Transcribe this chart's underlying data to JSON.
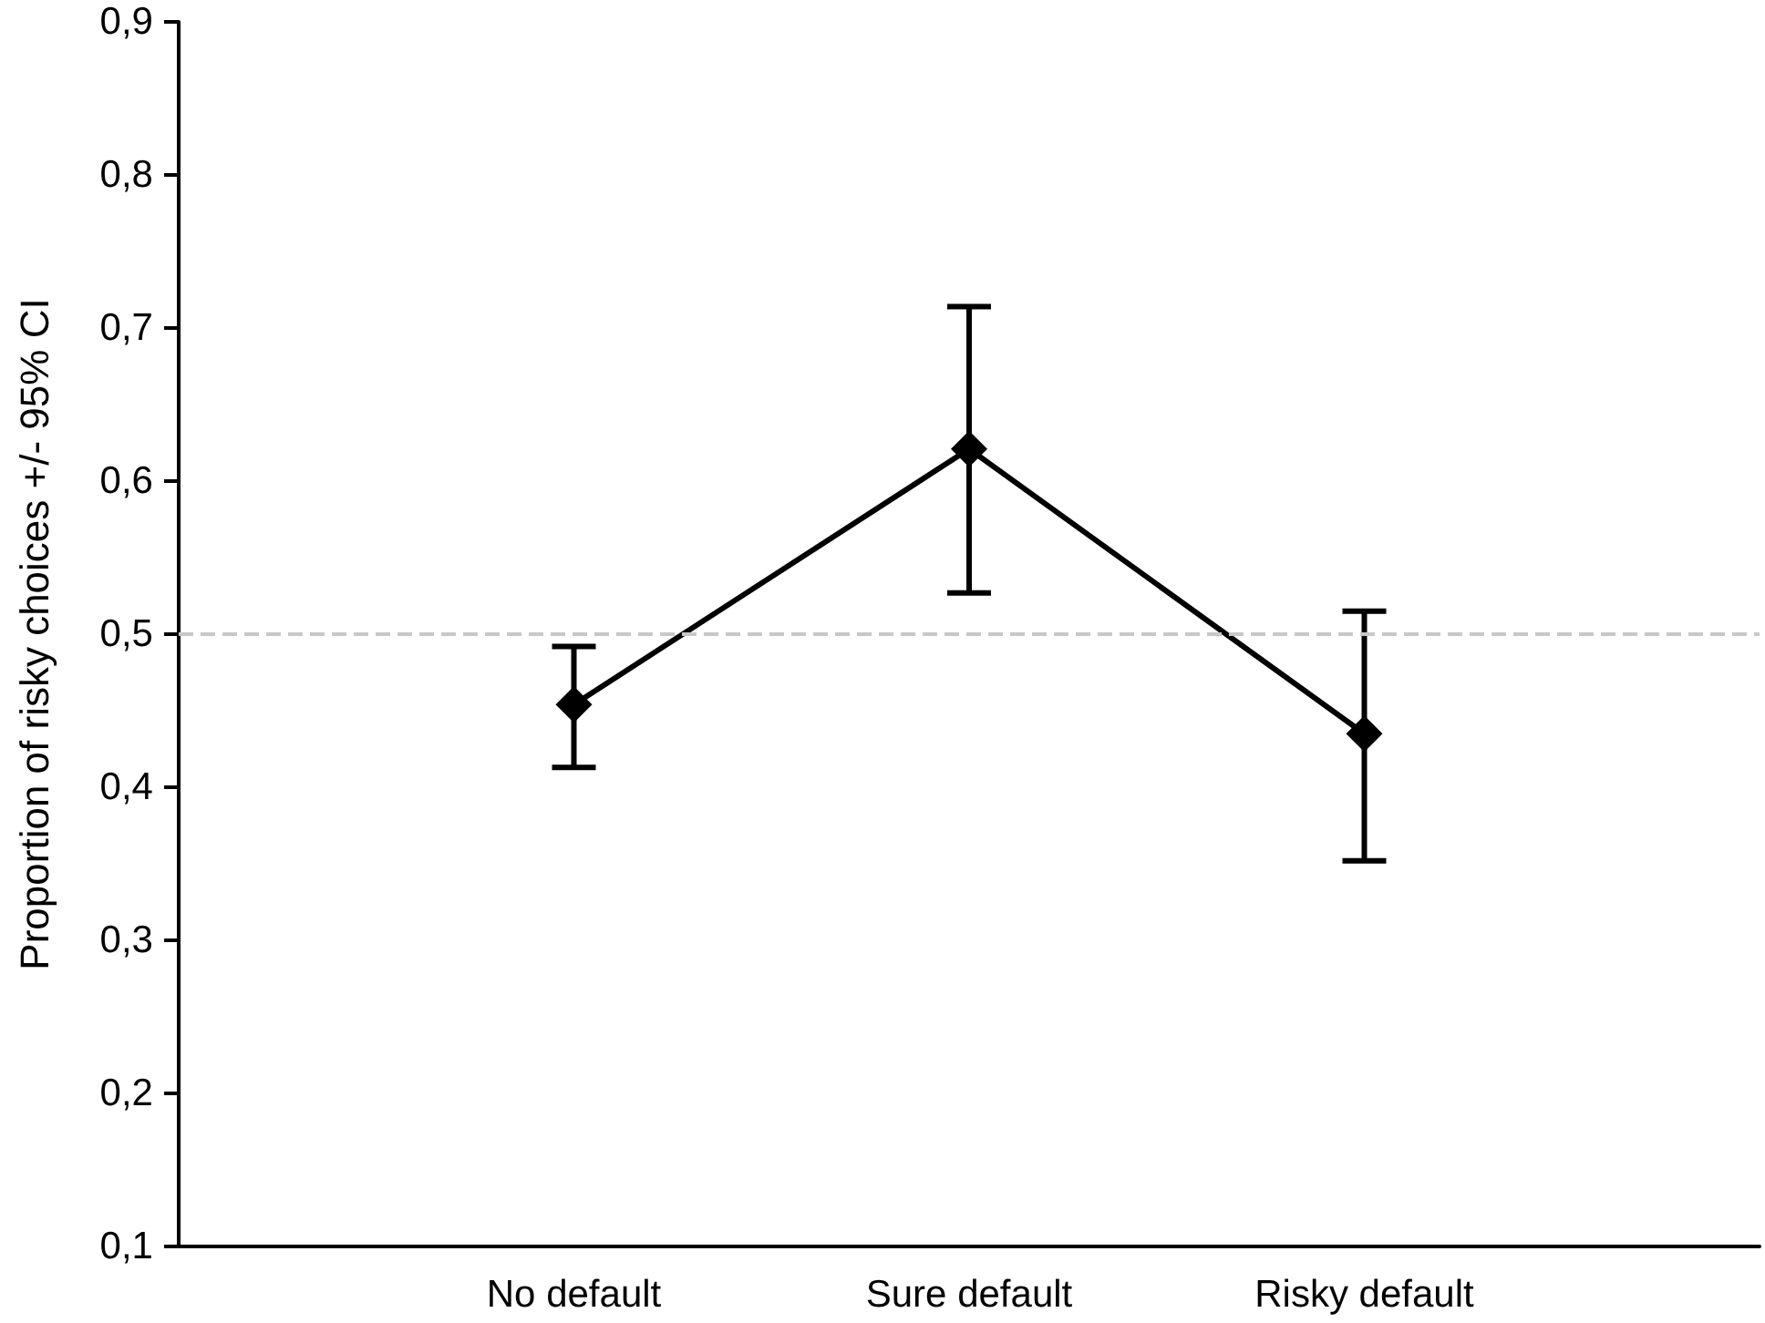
{
  "chart_data": {
    "type": "line",
    "ylabel": "Proportion of risky choices +/- 95% CI",
    "categories": [
      "No default",
      "Sure default",
      "Risky default"
    ],
    "series": [
      {
        "color": "#000000",
        "values": [
          0.454,
          0.621,
          0.435
        ],
        "errors": [
          [
            0.413,
            0.492
          ],
          [
            0.527,
            0.714
          ],
          [
            0.352,
            0.515
          ]
        ]
      }
    ],
    "ylim": [
      0.1,
      0.9
    ],
    "yticks": [
      {
        "value": 0.1,
        "label": "0,1"
      },
      {
        "value": 0.2,
        "label": "0,2"
      },
      {
        "value": 0.3,
        "label": "0,3"
      },
      {
        "value": 0.4,
        "label": "0,4"
      },
      {
        "value": 0.5,
        "label": "0,5"
      },
      {
        "value": 0.6,
        "label": "0,6"
      },
      {
        "value": 0.7,
        "label": "0,7"
      },
      {
        "value": 0.8,
        "label": "0,8"
      },
      {
        "value": 0.9,
        "label": "0,9"
      }
    ],
    "ref_lines": [
      {
        "axis": "y",
        "value": 0.5,
        "color": "#c8c8c8",
        "line_style": "dashed"
      }
    ],
    "marker": "diamond",
    "line_style": "solid",
    "grid": false
  }
}
